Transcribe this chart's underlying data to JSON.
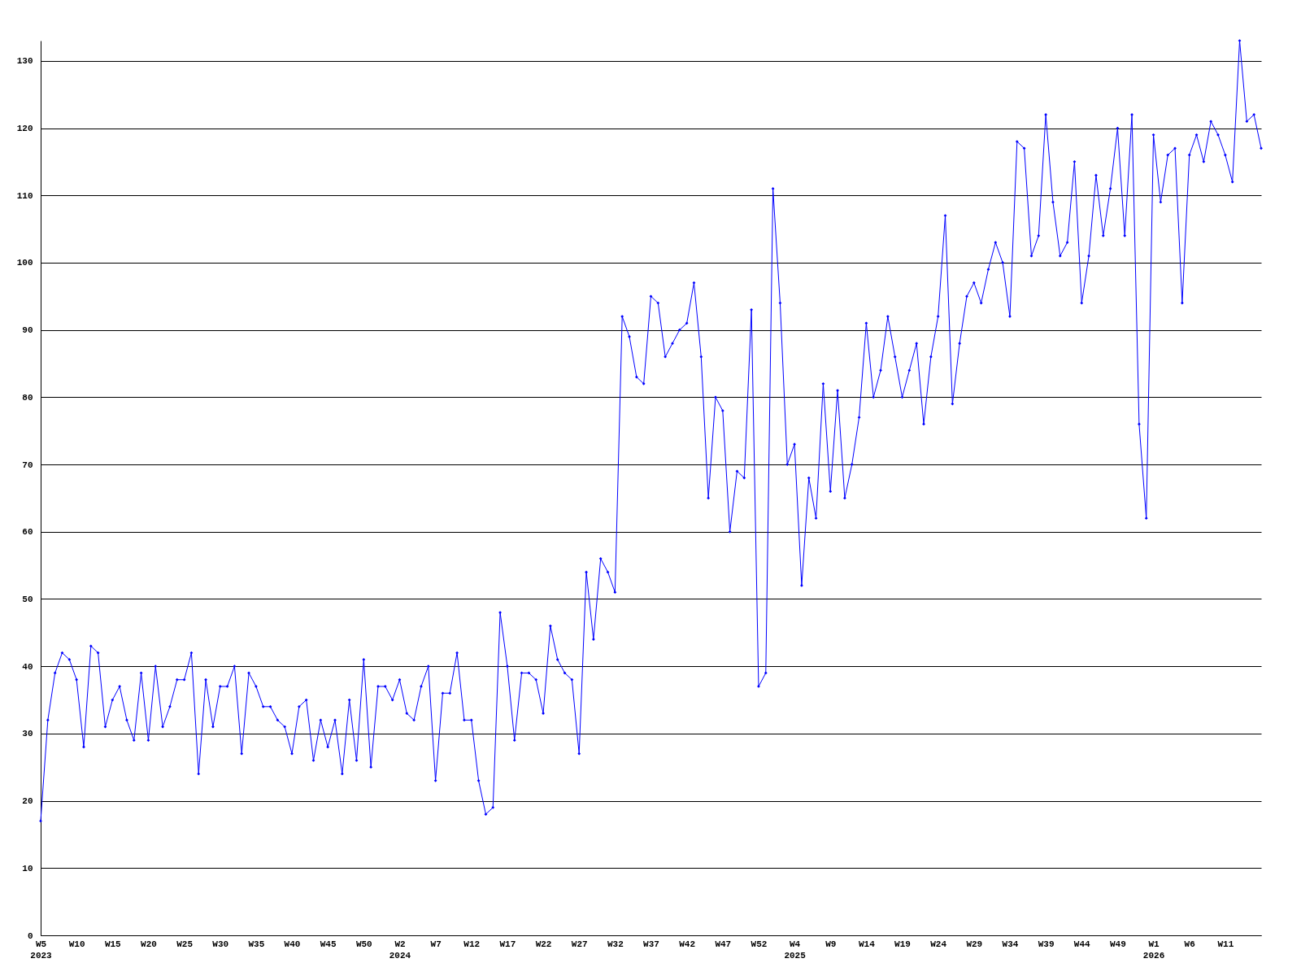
{
  "chart_data": {
    "type": "line",
    "categories": [
      "W5\n2023",
      null,
      null,
      null,
      null,
      "W10",
      null,
      null,
      null,
      null,
      "W15",
      null,
      null,
      null,
      null,
      "W20",
      null,
      null,
      null,
      null,
      "W25",
      null,
      null,
      null,
      null,
      "W30",
      null,
      null,
      null,
      null,
      "W35",
      null,
      null,
      null,
      null,
      "W40",
      null,
      null,
      null,
      null,
      "W45",
      null,
      null,
      null,
      null,
      "W50",
      null,
      null,
      null,
      null,
      "W2\n2024",
      null,
      null,
      null,
      null,
      "W7",
      null,
      null,
      null,
      null,
      "W12",
      null,
      null,
      null,
      null,
      "W17",
      null,
      null,
      null,
      null,
      "W22",
      null,
      null,
      null,
      null,
      "W27",
      null,
      null,
      null,
      null,
      "W32",
      null,
      null,
      null,
      null,
      "W37",
      null,
      null,
      null,
      null,
      "W42",
      null,
      null,
      null,
      null,
      "W47",
      null,
      null,
      null,
      null,
      "W52",
      null,
      null,
      null,
      null,
      "W4\n2025",
      null,
      null,
      null,
      null,
      "W9",
      null,
      null,
      null,
      null,
      "W14",
      null,
      null,
      null,
      null,
      "W19",
      null,
      null,
      null,
      null,
      "W24",
      null,
      null,
      null,
      null,
      "W29",
      null,
      null,
      null,
      null,
      "W34",
      null,
      null,
      null,
      null,
      "W39",
      null,
      null,
      null,
      null,
      "W44",
      null,
      null,
      null,
      null,
      "W49",
      null,
      null,
      null,
      null,
      "W1\n2026",
      null,
      null,
      null,
      null,
      "W6",
      null,
      null,
      null,
      null,
      "W11",
      null,
      null,
      null,
      null,
      null
    ],
    "series": [
      {
        "color": "#0000ff",
        "values": [
          17,
          32,
          39,
          42,
          41,
          38,
          28,
          43,
          42,
          31,
          35,
          37,
          32,
          29,
          39,
          29,
          40,
          31,
          34,
          38,
          38,
          42,
          24,
          38,
          31,
          37,
          37,
          40,
          27,
          39,
          37,
          34,
          34,
          32,
          31,
          27,
          34,
          35,
          26,
          32,
          28,
          32,
          24,
          35,
          26,
          41,
          25,
          37,
          37,
          35,
          38,
          33,
          32,
          37,
          40,
          23,
          36,
          36,
          42,
          32,
          32,
          23,
          18,
          19,
          48,
          40,
          29,
          39,
          39,
          38,
          33,
          46,
          41,
          39,
          38,
          27,
          54,
          44,
          56,
          54,
          51,
          92,
          89,
          83,
          82,
          95,
          94,
          86,
          88,
          90,
          91,
          97,
          86,
          65,
          80,
          78,
          60,
          69,
          68,
          93,
          37,
          39,
          111,
          94,
          70,
          73,
          52,
          68,
          62,
          82,
          66,
          81,
          65,
          70,
          77,
          91,
          80,
          84,
          92,
          86,
          80,
          84,
          88,
          76,
          86,
          92,
          107,
          79,
          88,
          95,
          97,
          94,
          99,
          103,
          100,
          92,
          118,
          117,
          101,
          104,
          122,
          109,
          101,
          103,
          115,
          94,
          101,
          113,
          104,
          111,
          120,
          104,
          122,
          76,
          62,
          119,
          109,
          116,
          117,
          94,
          116,
          119,
          115,
          121,
          119,
          116,
          112,
          133,
          121,
          122,
          117
        ]
      }
    ],
    "ylim": [
      0,
      133
    ],
    "yticks": [
      0,
      10,
      20,
      30,
      40,
      50,
      60,
      70,
      80,
      90,
      100,
      110,
      120,
      130
    ],
    "grid": "y",
    "marker": "diamond"
  }
}
